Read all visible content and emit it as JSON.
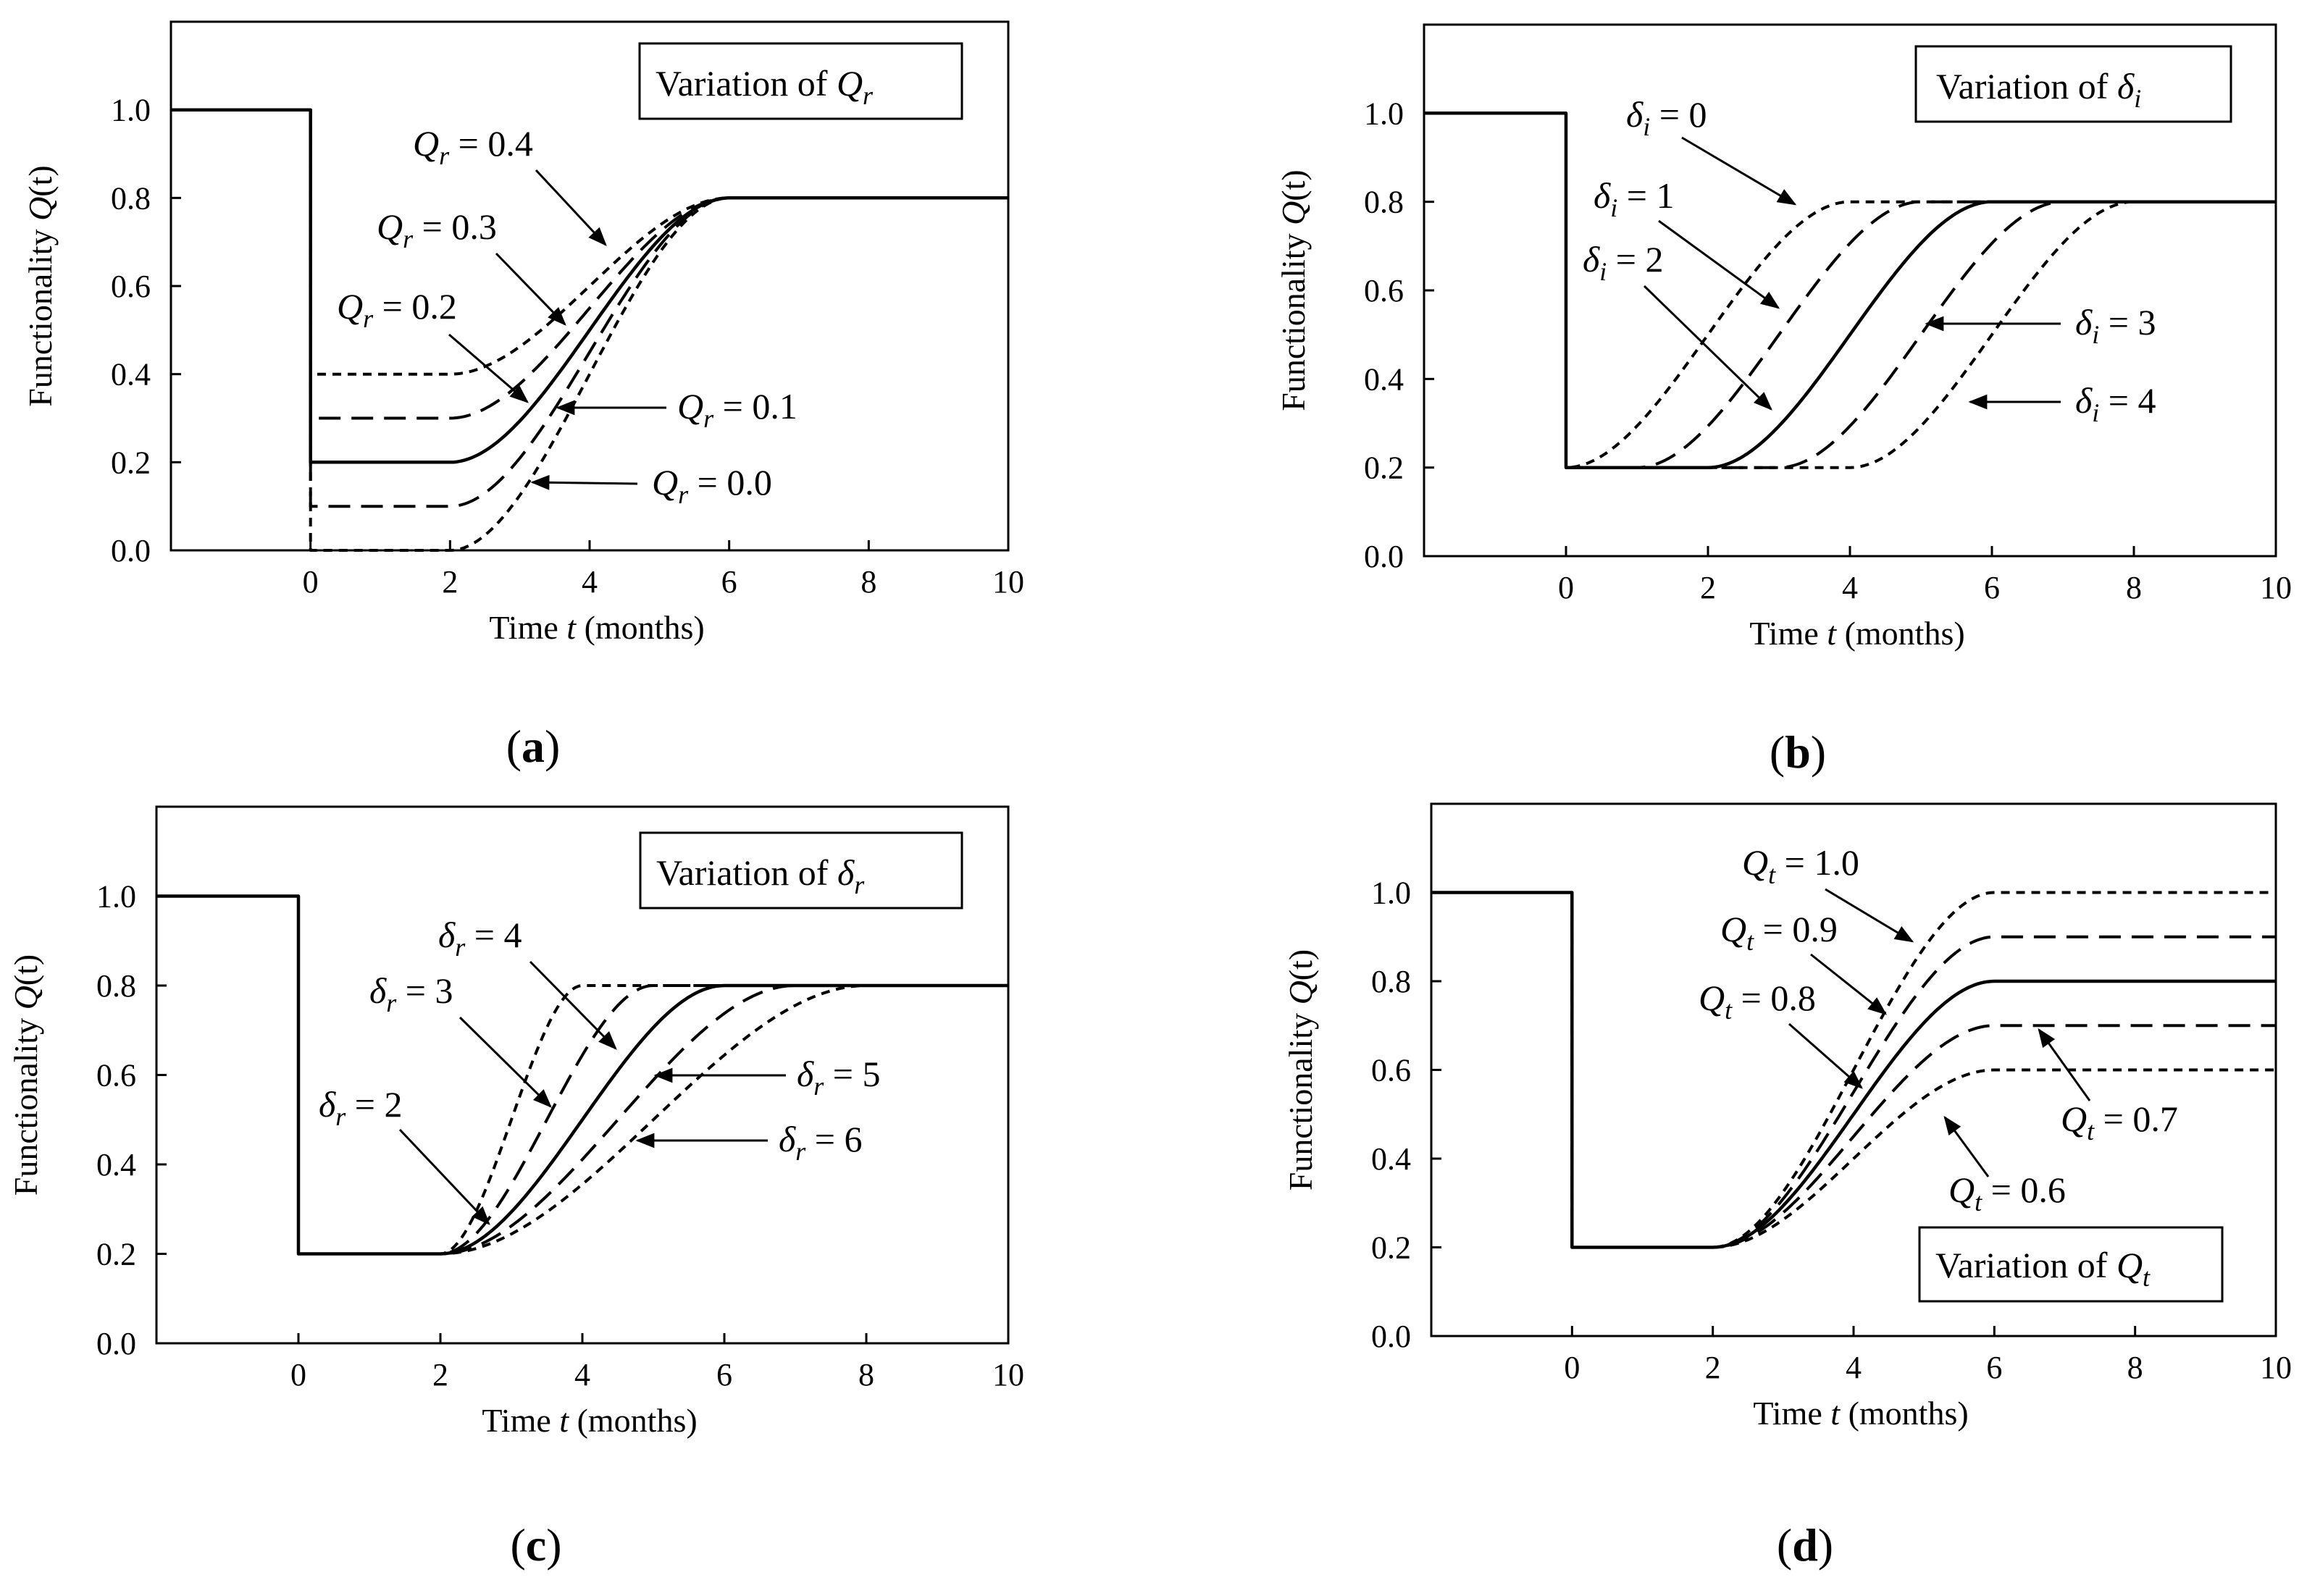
{
  "figure": {
    "panel_labels": [
      "(a)",
      "(b)",
      "(c)",
      "(d)"
    ]
  },
  "chart_data": [
    {
      "type": "line",
      "panel": "a",
      "legend_box": {
        "prefix": "Variation of ",
        "sym": "Q",
        "sub": "r"
      },
      "xlabel": {
        "pre": "Time ",
        "var": "t",
        "post": " (months)"
      },
      "ylabel": {
        "pre": "Functionality ",
        "var": "Q",
        "post": "(t)"
      },
      "xlim": [
        -2,
        10
      ],
      "ylim": [
        0,
        1.2
      ],
      "xticks": [
        0,
        2,
        4,
        6,
        8,
        10
      ],
      "yticks": [
        0.0,
        0.2,
        0.4,
        0.6,
        0.8,
        1.0
      ],
      "series": [
        {
          "name": "Qr = 0.4",
          "label": {
            "sym": "Q",
            "sub": "r",
            "val": " = 0.4"
          },
          "style": "dotdash",
          "pre": 1.0,
          "drop_at": 0,
          "Qr": 0.4,
          "Qt": 0.8,
          "ti": 2,
          "tr": 4
        },
        {
          "name": "Qr = 0.3",
          "label": {
            "sym": "Q",
            "sub": "r",
            "val": " = 0.3"
          },
          "style": "dash",
          "pre": 1.0,
          "drop_at": 0,
          "Qr": 0.3,
          "Qt": 0.8,
          "ti": 2,
          "tr": 4
        },
        {
          "name": "Qr = 0.2",
          "label": {
            "sym": "Q",
            "sub": "r",
            "val": " = 0.2"
          },
          "style": "solid",
          "pre": 1.0,
          "drop_at": 0,
          "Qr": 0.2,
          "Qt": 0.8,
          "ti": 2,
          "tr": 4
        },
        {
          "name": "Qr = 0.1",
          "label": {
            "sym": "Q",
            "sub": "r",
            "val": " = 0.1"
          },
          "style": "dash",
          "pre": 1.0,
          "drop_at": 0,
          "Qr": 0.1,
          "Qt": 0.8,
          "ti": 2,
          "tr": 4
        },
        {
          "name": "Qr = 0.0",
          "label": {
            "sym": "Q",
            "sub": "r",
            "val": " = 0.0"
          },
          "style": "dotdash",
          "pre": 1.0,
          "drop_at": 0,
          "Qr": 0.0,
          "Qt": 0.8,
          "ti": 2,
          "tr": 4
        }
      ]
    },
    {
      "type": "line",
      "panel": "b",
      "legend_box": {
        "prefix": "Variation of ",
        "sym": "δ",
        "sub": "i"
      },
      "xlabel": {
        "pre": "Time ",
        "var": "t",
        "post": " (months)"
      },
      "ylabel": {
        "pre": "Functionality ",
        "var": "Q",
        "post": "(t)"
      },
      "xlim": [
        -2,
        10
      ],
      "ylim": [
        0,
        1.2
      ],
      "xticks": [
        0,
        2,
        4,
        6,
        8,
        10
      ],
      "yticks": [
        0.0,
        0.2,
        0.4,
        0.6,
        0.8,
        1.0
      ],
      "series": [
        {
          "name": "δi = 0",
          "label": {
            "sym": "δ",
            "sub": "i",
            "val": " = 0"
          },
          "style": "dotdash",
          "pre": 1.0,
          "drop_at": 0,
          "Qr": 0.2,
          "Qt": 0.8,
          "ti": 0,
          "tr": 4
        },
        {
          "name": "δi = 1",
          "label": {
            "sym": "δ",
            "sub": "i",
            "val": " = 1"
          },
          "style": "dash",
          "pre": 1.0,
          "drop_at": 0,
          "Qr": 0.2,
          "Qt": 0.8,
          "ti": 1,
          "tr": 4
        },
        {
          "name": "δi = 2",
          "label": {
            "sym": "δ",
            "sub": "i",
            "val": " = 2"
          },
          "style": "solid",
          "pre": 1.0,
          "drop_at": 0,
          "Qr": 0.2,
          "Qt": 0.8,
          "ti": 2,
          "tr": 4
        },
        {
          "name": "δi = 3",
          "label": {
            "sym": "δ",
            "sub": "i",
            "val": " = 3"
          },
          "style": "dash",
          "pre": 1.0,
          "drop_at": 0,
          "Qr": 0.2,
          "Qt": 0.8,
          "ti": 3,
          "tr": 4
        },
        {
          "name": "δi = 4",
          "label": {
            "sym": "δ",
            "sub": "i",
            "val": " = 4"
          },
          "style": "dotdash",
          "pre": 1.0,
          "drop_at": 0,
          "Qr": 0.2,
          "Qt": 0.8,
          "ti": 4,
          "tr": 4
        }
      ]
    },
    {
      "type": "line",
      "panel": "c",
      "legend_box": {
        "prefix": "Variation of ",
        "sym": "δ",
        "sub": "r"
      },
      "xlabel": {
        "pre": "Time ",
        "var": "t",
        "post": " (months)"
      },
      "ylabel": {
        "pre": "Functionality ",
        "var": "Q",
        "post": "(t)"
      },
      "xlim": [
        -2,
        10
      ],
      "ylim": [
        0,
        1.2
      ],
      "xticks": [
        0,
        2,
        4,
        6,
        8,
        10
      ],
      "yticks": [
        0.0,
        0.2,
        0.4,
        0.6,
        0.8,
        1.0
      ],
      "series": [
        {
          "name": "δr = 2",
          "label": {
            "sym": "δ",
            "sub": "r",
            "val": " = 2"
          },
          "style": "dotdash",
          "pre": 1.0,
          "drop_at": 0,
          "Qr": 0.2,
          "Qt": 0.8,
          "ti": 2,
          "tr": 2
        },
        {
          "name": "δr = 3",
          "label": {
            "sym": "δ",
            "sub": "r",
            "val": " = 3"
          },
          "style": "dash",
          "pre": 1.0,
          "drop_at": 0,
          "Qr": 0.2,
          "Qt": 0.8,
          "ti": 2,
          "tr": 3
        },
        {
          "name": "δr = 4",
          "label": {
            "sym": "δ",
            "sub": "r",
            "val": " = 4"
          },
          "style": "solid",
          "pre": 1.0,
          "drop_at": 0,
          "Qr": 0.2,
          "Qt": 0.8,
          "ti": 2,
          "tr": 4
        },
        {
          "name": "δr = 5",
          "label": {
            "sym": "δ",
            "sub": "r",
            "val": " = 5"
          },
          "style": "dash",
          "pre": 1.0,
          "drop_at": 0,
          "Qr": 0.2,
          "Qt": 0.8,
          "ti": 2,
          "tr": 5
        },
        {
          "name": "δr = 6",
          "label": {
            "sym": "δ",
            "sub": "r",
            "val": " = 6"
          },
          "style": "dotdash",
          "pre": 1.0,
          "drop_at": 0,
          "Qr": 0.2,
          "Qt": 0.8,
          "ti": 2,
          "tr": 6
        }
      ]
    },
    {
      "type": "line",
      "panel": "d",
      "legend_box": {
        "prefix": "Variation of ",
        "sym": "Q",
        "sub": "t"
      },
      "xlabel": {
        "pre": "Time ",
        "var": "t",
        "post": " (months)"
      },
      "ylabel": {
        "pre": "Functionality ",
        "var": "Q",
        "post": "(t)"
      },
      "xlim": [
        -2,
        10
      ],
      "ylim": [
        0,
        1.2
      ],
      "xticks": [
        0,
        2,
        4,
        6,
        8,
        10
      ],
      "yticks": [
        0.0,
        0.2,
        0.4,
        0.6,
        0.8,
        1.0
      ],
      "series": [
        {
          "name": "Qt = 1.0",
          "label": {
            "sym": "Q",
            "sub": "t",
            "val": " = 1.0"
          },
          "style": "dotdash",
          "pre": 1.0,
          "drop_at": 0,
          "Qr": 0.2,
          "Qt": 1.0,
          "ti": 2,
          "tr": 4
        },
        {
          "name": "Qt = 0.9",
          "label": {
            "sym": "Q",
            "sub": "t",
            "val": " = 0.9"
          },
          "style": "dash",
          "pre": 1.0,
          "drop_at": 0,
          "Qr": 0.2,
          "Qt": 0.9,
          "ti": 2,
          "tr": 4
        },
        {
          "name": "Qt = 0.8",
          "label": {
            "sym": "Q",
            "sub": "t",
            "val": " = 0.8"
          },
          "style": "solid",
          "pre": 1.0,
          "drop_at": 0,
          "Qr": 0.2,
          "Qt": 0.8,
          "ti": 2,
          "tr": 4
        },
        {
          "name": "Qt = 0.7",
          "label": {
            "sym": "Q",
            "sub": "t",
            "val": " = 0.7"
          },
          "style": "dash",
          "pre": 1.0,
          "drop_at": 0,
          "Qr": 0.2,
          "Qt": 0.7,
          "ti": 2,
          "tr": 4
        },
        {
          "name": "Qt = 0.6",
          "label": {
            "sym": "Q",
            "sub": "t",
            "val": " = 0.6"
          },
          "style": "dotdash",
          "pre": 1.0,
          "drop_at": 0,
          "Qr": 0.2,
          "Qt": 0.6,
          "ti": 2,
          "tr": 4
        }
      ]
    }
  ]
}
